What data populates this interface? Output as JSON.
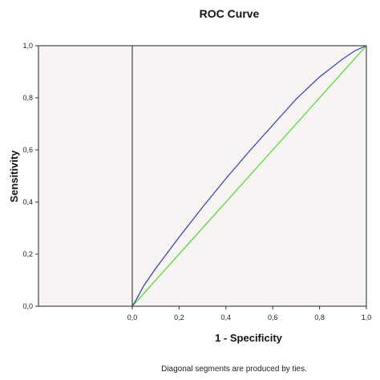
{
  "chart_data": {
    "type": "line",
    "title": "ROC Curve",
    "xlabel": "1 - Specificity",
    "ylabel": "Sensitivity",
    "xlim": [
      0,
      1
    ],
    "ylim": [
      0,
      1
    ],
    "x_tick_labels": [
      "0,0",
      "0,2",
      "0,4",
      "0,6",
      "0,8",
      "1,0"
    ],
    "y_tick_labels": [
      "0,0",
      "0,2",
      "0,4",
      "0,6",
      "0,8",
      "1,0"
    ],
    "x_tick_values": [
      0,
      0.2,
      0.4,
      0.6,
      0.8,
      1.0
    ],
    "y_tick_values": [
      0,
      0.2,
      0.4,
      0.6,
      0.8,
      1.0
    ],
    "grid": false,
    "footnote": "Diagonal segments are produced by ties.",
    "series": [
      {
        "color": "#2d3fb8",
        "x": [
          0,
          0.02,
          0.05,
          0.1,
          0.2,
          0.3,
          0.4,
          0.5,
          0.6,
          0.7,
          0.8,
          0.9,
          0.95,
          1.0
        ],
        "y": [
          0,
          0.03,
          0.08,
          0.145,
          0.265,
          0.38,
          0.49,
          0.595,
          0.695,
          0.795,
          0.88,
          0.95,
          0.98,
          1.0
        ]
      },
      {
        "color": "#44dd22",
        "x": [
          0,
          1
        ],
        "y": [
          0,
          1
        ]
      }
    ],
    "colors": {
      "plot_background": "#f7f4f3",
      "frame": "#222222"
    }
  }
}
